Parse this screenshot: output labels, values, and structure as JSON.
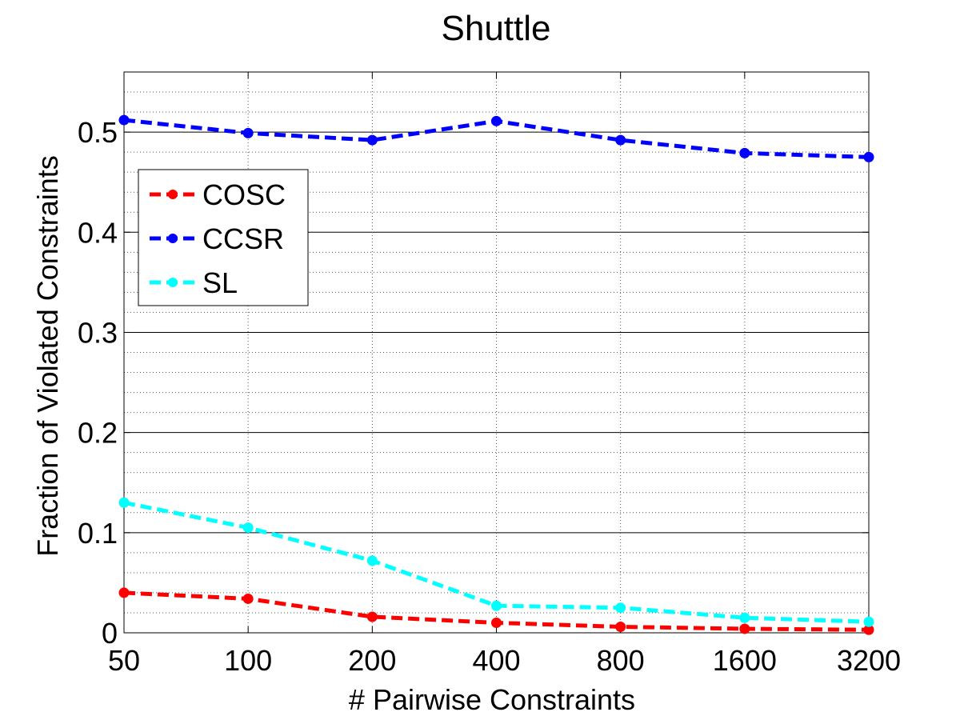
{
  "chart_data": {
    "type": "line",
    "title": "Shuttle",
    "xlabel": "# Pairwise Constraints",
    "ylabel": "Fraction of Violated Constraints",
    "categories": [
      "50",
      "100",
      "200",
      "400",
      "800",
      "1600",
      "3200"
    ],
    "ylim": [
      0,
      0.56
    ],
    "yticks": [
      0,
      0.1,
      0.2,
      0.3,
      0.4,
      0.5
    ],
    "ytick_labels": [
      "0",
      "0.1",
      "0.2",
      "0.3",
      "0.4",
      "0.5"
    ],
    "grid": true,
    "legend_position": "top-left",
    "series": [
      {
        "name": "COSC",
        "color": "#ff0000",
        "values": [
          0.04,
          0.034,
          0.016,
          0.01,
          0.006,
          0.004,
          0.003
        ]
      },
      {
        "name": "CCSR",
        "color": "#0000ff",
        "values": [
          0.512,
          0.499,
          0.492,
          0.511,
          0.492,
          0.479,
          0.475
        ]
      },
      {
        "name": "SL",
        "color": "#00ffff",
        "values": [
          0.13,
          0.105,
          0.072,
          0.027,
          0.025,
          0.015,
          0.011
        ]
      }
    ]
  }
}
